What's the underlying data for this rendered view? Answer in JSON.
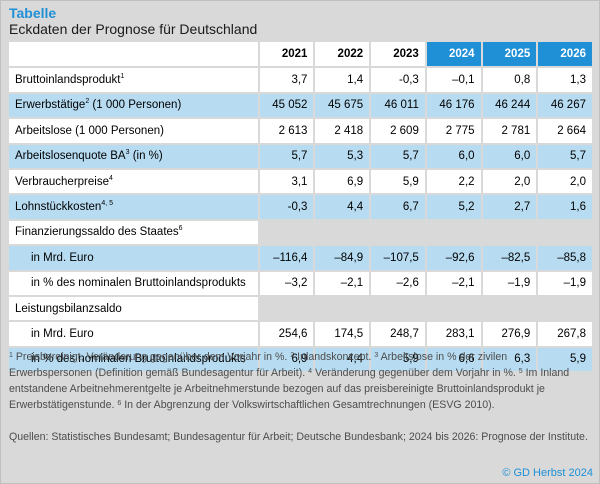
{
  "header": {
    "kicker": "Tabelle",
    "title": "Eckdaten der Prognose für Deutschland"
  },
  "table": {
    "years": [
      "2021",
      "2022",
      "2023",
      "2024",
      "2025",
      "2026"
    ],
    "rows": [
      {
        "label": "Bruttoinlandsprodukt",
        "sup": "1",
        "indent": false,
        "style": "white",
        "values": [
          "3,7",
          "1,4",
          "-0,3",
          "–0,1",
          "0,8",
          "1,3"
        ]
      },
      {
        "label": "Erwerbstätige",
        "sup": "2",
        "suffix": " (1 000 Personen)",
        "indent": false,
        "style": "blue",
        "values": [
          "45 052",
          "45 675",
          "46 011",
          "46 176",
          "46 244",
          "46 267"
        ]
      },
      {
        "label": "Arbeitslose (1 000 Personen)",
        "sup": "",
        "indent": false,
        "style": "white",
        "values": [
          "2 613",
          "2 418",
          "2 609",
          "2 775",
          "2 781",
          "2 664"
        ]
      },
      {
        "label": "Arbeitslosenquote BA",
        "sup": "3",
        "suffix": " (in %)",
        "indent": false,
        "style": "blue",
        "values": [
          "5,7",
          "5,3",
          "5,7",
          "6,0",
          "6,0",
          "5,7"
        ]
      },
      {
        "label": "Verbraucherpreise",
        "sup": "4",
        "indent": false,
        "style": "white",
        "values": [
          "3,1",
          "6,9",
          "5,9",
          "2,2",
          "2,0",
          "2,0"
        ]
      },
      {
        "label": "Lohnstückkosten",
        "sup": "4, 5",
        "indent": false,
        "style": "blue",
        "values": [
          "-0,3",
          "4,4",
          "6,7",
          "5,2",
          "2,7",
          "1,6"
        ]
      },
      {
        "label": "Finanzierungssaldo des Staates",
        "sup": "6",
        "indent": false,
        "style": "grey",
        "values": [
          "",
          "",
          "",
          "",
          "",
          ""
        ]
      },
      {
        "label": "in Mrd. Euro",
        "sup": "",
        "indent": true,
        "style": "blue",
        "values": [
          "–116,4",
          "–84,9",
          "–107,5",
          "–92,6",
          "–82,5",
          "–85,8"
        ]
      },
      {
        "label": "in % des nominalen Bruttoinlandsprodukts",
        "sup": "",
        "indent": true,
        "style": "white",
        "values": [
          "–3,2",
          "–2,1",
          "–2,6",
          "–2,1",
          "–1,9",
          "–1,9"
        ]
      },
      {
        "label": "Leistungsbilanzsaldo",
        "sup": "",
        "indent": false,
        "style": "grey",
        "values": [
          "",
          "",
          "",
          "",
          "",
          ""
        ]
      },
      {
        "label": "in Mrd. Euro",
        "sup": "",
        "indent": true,
        "style": "white",
        "values": [
          "254,6",
          "174,5",
          "248,7",
          "283,1",
          "276,9",
          "267,8"
        ]
      },
      {
        "label": "in % des nominalen Bruttoinlandsprodukts",
        "sup": "",
        "indent": true,
        "style": "blue",
        "values": [
          "6,9",
          "4,4",
          "5,9",
          "6,6",
          "6,3",
          "5,9"
        ]
      }
    ]
  },
  "footnotes": [
    {
      "num": "1",
      "text": " Preisbereinigt, Veränderung gegenüber dem Vorjahr in %. "
    },
    {
      "num": "2",
      "text": " Inlandskonzept. "
    },
    {
      "num": "3",
      "text": " Arbeitslose in % der zivilen Erwerbspersonen (Definition gemäß Bundesagentur für Arbeit). "
    },
    {
      "num": "4",
      "text": " Veränderung gegenüber dem Vorjahr in %. "
    },
    {
      "num": "5",
      "text": " Im Inland entstandene Arbeitnehmerentgelte je Arbeitnehmerstunde bezogen auf das preisbereinigte Bruttoinlandsprodukt je Erwerbstätigenstunde. "
    },
    {
      "num": "6",
      "text": " In der Abgrenzung der Volkswirtschaftlichen Gesamtrechnungen (ESVG 2010)."
    }
  ],
  "sources": "Quellen: Statistisches Bundesamt; Bundesagentur für Arbeit; Deutsche Bundesbank; 2024 bis 2026: Prognose der Institute.",
  "copyright": "© GD Herbst 2024",
  "colors": {
    "accent": "#1f8fd6",
    "row_highlight": "#b7dcf2",
    "background": "#d9d9d9"
  }
}
